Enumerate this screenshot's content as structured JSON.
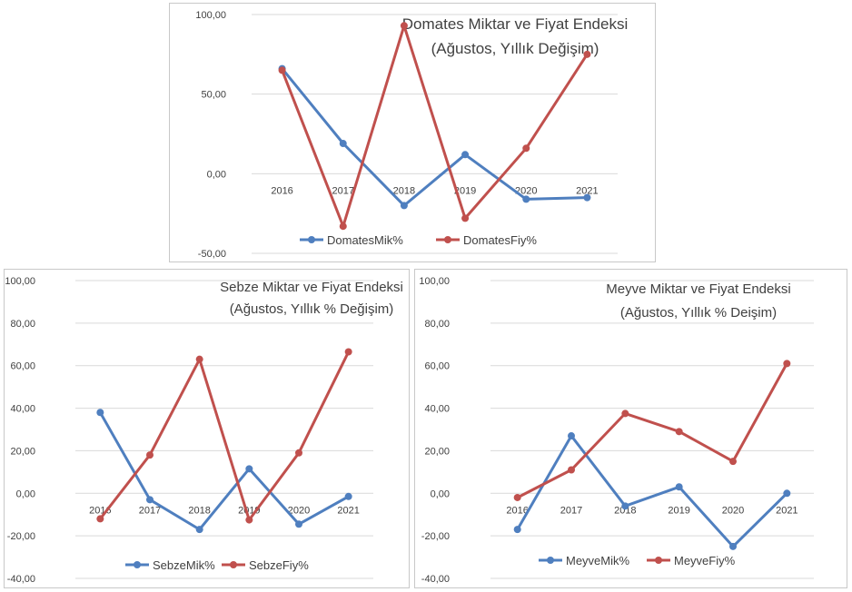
{
  "chart_data": [
    {
      "id": "tomato",
      "type": "line",
      "title_lines": [
        "Domates Miktar ve Fiyat Endeksi",
        "(Ağustos, Yıllık Değişim)"
      ],
      "categories": [
        "2016",
        "2017",
        "2018",
        "2019",
        "2020",
        "2021"
      ],
      "series": [
        {
          "name": "DomatesMik%",
          "color": "#4f7fbf",
          "values": [
            66,
            19,
            -20,
            12,
            -16,
            -15
          ]
        },
        {
          "name": "DomatesFiy%",
          "color": "#c0504d",
          "values": [
            65,
            -33,
            93,
            -28,
            16,
            75
          ]
        }
      ],
      "ylim": [
        -50,
        100
      ],
      "yticks": [
        "100,00",
        "50,00",
        "0,00",
        "-50,00"
      ],
      "grid": true,
      "legend": "bottom"
    },
    {
      "id": "veg",
      "type": "line",
      "title_lines": [
        "Sebze Miktar ve Fiyat Endeksi",
        "(Ağustos, Yıllık % Değişim)"
      ],
      "categories": [
        "2016",
        "2017",
        "2018",
        "2019",
        "2020",
        "2021"
      ],
      "series": [
        {
          "name": "SebzeMik%",
          "color": "#4f7fbf",
          "values": [
            38,
            -3,
            -17,
            11.5,
            -14.5,
            -1.5
          ]
        },
        {
          "name": "SebzeFiy%",
          "color": "#c0504d",
          "values": [
            -12,
            18,
            63,
            -12.5,
            19,
            66.5
          ]
        }
      ],
      "ylim": [
        -40,
        100
      ],
      "yticks": [
        "100,00",
        "80,00",
        "60,00",
        "40,00",
        "20,00",
        "0,00",
        "-20,00",
        "-40,00"
      ],
      "grid": true,
      "legend": "bottom"
    },
    {
      "id": "fruit",
      "type": "line",
      "title_lines": [
        "Meyve Miktar ve Fiyat Endeksi",
        "(Ağustos, Yıllık % Deişim)"
      ],
      "categories": [
        "2016",
        "2017",
        "2018",
        "2019",
        "2020",
        "2021"
      ],
      "series": [
        {
          "name": "MeyveMik%",
          "color": "#4f7fbf",
          "values": [
            -17,
            27,
            -6,
            3,
            -25,
            0
          ]
        },
        {
          "name": "MeyveFiy%",
          "color": "#c0504d",
          "values": [
            -2,
            11,
            37.5,
            29,
            15,
            61
          ]
        }
      ],
      "ylim": [
        -40,
        100
      ],
      "yticks": [
        "100,00",
        "80,00",
        "60,00",
        "40,00",
        "20,00",
        "0,00",
        "-20,00",
        "-40,00"
      ],
      "grid": true,
      "legend": "bottom"
    }
  ]
}
